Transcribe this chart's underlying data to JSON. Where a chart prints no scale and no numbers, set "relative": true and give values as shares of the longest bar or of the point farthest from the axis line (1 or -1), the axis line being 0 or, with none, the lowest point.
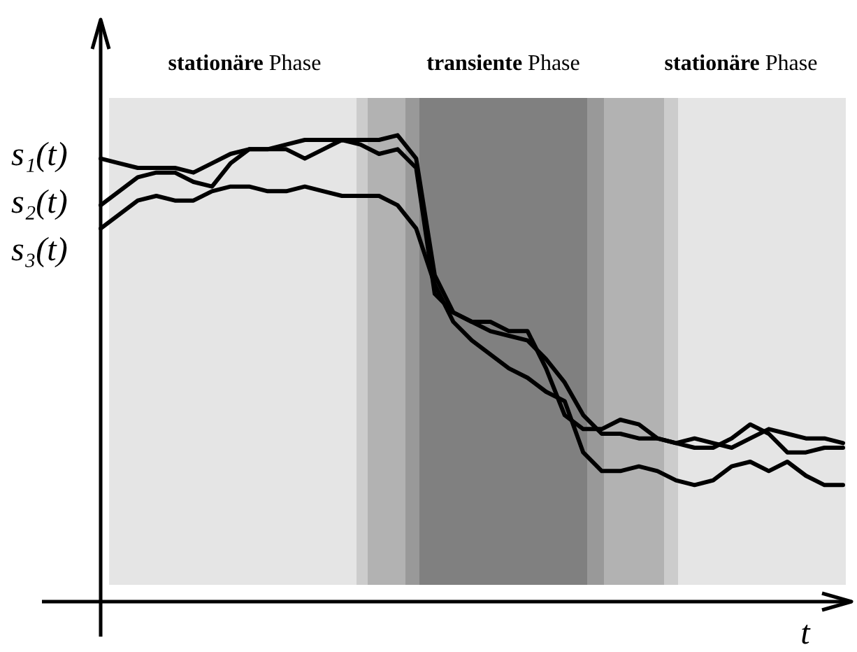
{
  "chart_data": {
    "type": "line",
    "relative": true,
    "legend": false,
    "marker": "none",
    "line_style": "solid",
    "xlabel": "t",
    "annotations": [
      "stationäre Phase",
      "transiente Phase",
      "stationäre Phase"
    ],
    "categories": [
      null,
      null,
      null,
      null,
      null,
      null,
      null,
      null,
      null,
      null,
      null,
      null,
      null,
      null,
      null,
      null,
      null,
      null,
      null,
      null,
      null,
      null,
      null,
      null,
      null,
      null,
      null,
      null,
      null,
      null,
      null,
      null,
      null,
      null,
      null,
      null,
      null,
      null,
      null,
      null,
      null
    ],
    "series": [
      {
        "name": "s₁(t)",
        "color": "#000000",
        "values": [
          0.95,
          0.94,
          0.93,
          0.93,
          0.93,
          0.92,
          0.94,
          0.96,
          0.97,
          0.97,
          0.98,
          0.99,
          0.99,
          0.99,
          0.99,
          0.99,
          1.0,
          0.95,
          0.7,
          0.62,
          0.6,
          0.58,
          0.57,
          0.56,
          0.52,
          0.47,
          0.4,
          0.36,
          0.36,
          0.35,
          0.35,
          0.34,
          0.35,
          0.34,
          0.33,
          0.35,
          0.37,
          0.36,
          0.35,
          0.35,
          0.34
        ]
      },
      {
        "name": "s₂(t)",
        "color": "#000000",
        "values": [
          0.85,
          0.88,
          0.91,
          0.92,
          0.92,
          0.9,
          0.89,
          0.94,
          0.97,
          0.97,
          0.97,
          0.95,
          0.97,
          0.99,
          0.98,
          0.96,
          0.97,
          0.93,
          0.66,
          0.62,
          0.6,
          0.6,
          0.58,
          0.58,
          0.5,
          0.4,
          0.37,
          0.37,
          0.39,
          0.38,
          0.35,
          0.34,
          0.33,
          0.33,
          0.35,
          0.38,
          0.36,
          0.32,
          0.32,
          0.33,
          0.33
        ]
      },
      {
        "name": "s₃(t)",
        "color": "#000000",
        "values": [
          0.8,
          0.83,
          0.86,
          0.87,
          0.86,
          0.86,
          0.88,
          0.89,
          0.89,
          0.88,
          0.88,
          0.89,
          0.88,
          0.87,
          0.87,
          0.87,
          0.85,
          0.8,
          0.68,
          0.6,
          0.56,
          0.53,
          0.5,
          0.48,
          0.45,
          0.43,
          0.32,
          0.28,
          0.28,
          0.29,
          0.28,
          0.26,
          0.25,
          0.26,
          0.29,
          0.3,
          0.28,
          0.3,
          0.27,
          0.25,
          0.25
        ]
      }
    ]
  }
}
